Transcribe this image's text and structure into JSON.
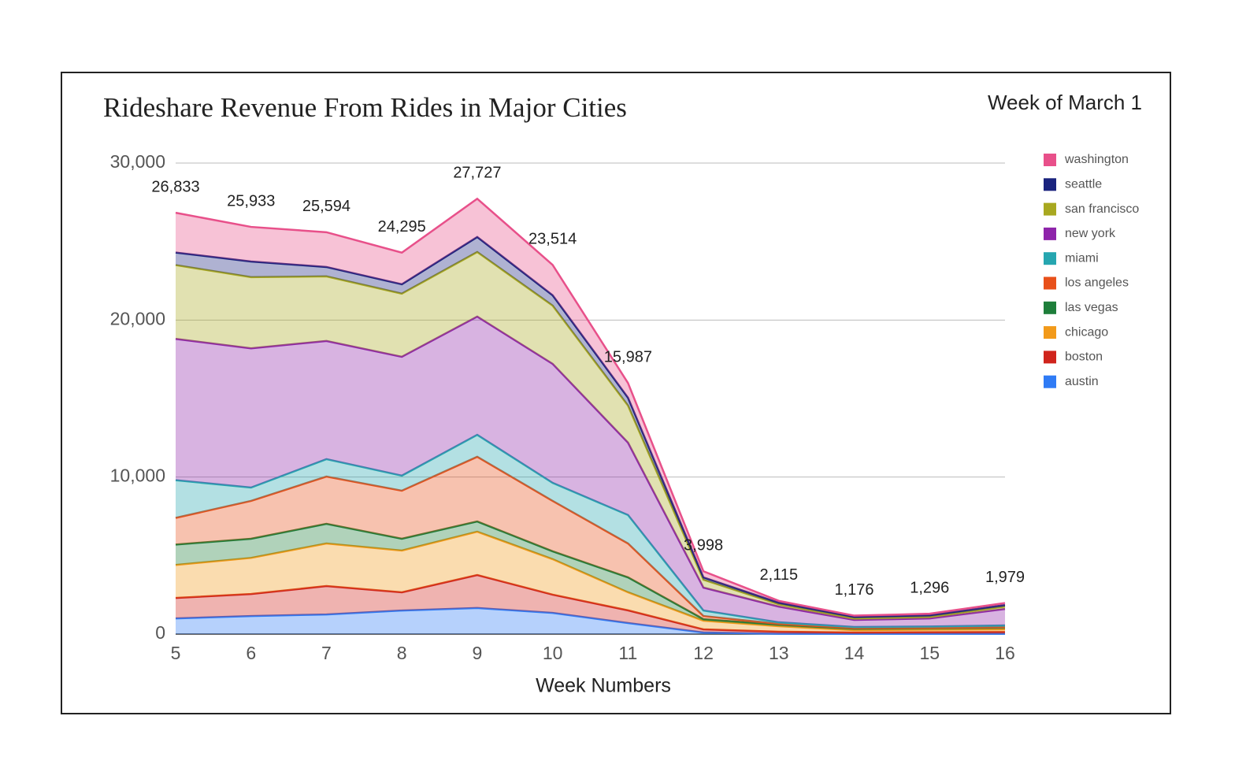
{
  "chart_data": {
    "type": "stacked-area",
    "title": "Rideshare Revenue From Rides in Major Cities",
    "subtitle": "Week of March 1",
    "x_label": "Week Numbers",
    "x": [
      5,
      6,
      7,
      8,
      9,
      10,
      11,
      12,
      13,
      14,
      15,
      16
    ],
    "xlim": [
      5,
      16
    ],
    "xticks": [
      5,
      6,
      7,
      8,
      9,
      10,
      11,
      12,
      13,
      14,
      15,
      16
    ],
    "ylim": [
      0,
      30000
    ],
    "yticks": [
      0,
      {
        "value": 10000,
        "label": "10,000"
      },
      {
        "value": 20000,
        "label": "20,000"
      },
      {
        "value": 30000,
        "label": "30,000"
      }
    ],
    "grid": true,
    "legend": "right",
    "series": [
      {
        "name": "austin",
        "color": "#2f7bf5",
        "values": [
          1000,
          1150,
          1250,
          1500,
          1660,
          1350,
          700,
          100,
          20,
          20,
          20,
          20
        ]
      },
      {
        "name": "boston",
        "color": "#d0241c",
        "values": [
          1300,
          1400,
          1810,
          1160,
          2100,
          1160,
          810,
          200,
          130,
          80,
          100,
          110
        ]
      },
      {
        "name": "chicago",
        "color": "#f29a1a",
        "values": [
          2100,
          2300,
          2710,
          2660,
          2760,
          2260,
          1150,
          550,
          350,
          150,
          160,
          170
        ]
      },
      {
        "name": "las vegas",
        "color": "#1e7e3a",
        "values": [
          1300,
          1220,
          1250,
          750,
          650,
          500,
          950,
          100,
          100,
          100,
          100,
          120
        ]
      },
      {
        "name": "los angeles",
        "color": "#e8501a",
        "values": [
          1700,
          2410,
          3010,
          3060,
          4120,
          3210,
          2160,
          200,
          50,
          30,
          20,
          20
        ]
      },
      {
        "name": "miami",
        "color": "#26a6b0",
        "values": [
          2400,
          850,
          1110,
          960,
          1400,
          1150,
          1810,
          350,
          100,
          70,
          80,
          110
        ]
      },
      {
        "name": "new york",
        "color": "#8e24aa",
        "values": [
          9000,
          8870,
          7530,
          7570,
          7530,
          7580,
          4610,
          1460,
          1000,
          450,
          520,
          1050
        ]
      },
      {
        "name": "san francisco",
        "color": "#a8a820",
        "values": [
          4700,
          4530,
          4110,
          4020,
          4110,
          3710,
          2360,
          500,
          150,
          100,
          100,
          150
        ]
      },
      {
        "name": "seattle",
        "color": "#1a237e",
        "values": [
          800,
          1000,
          600,
          600,
          960,
          660,
          500,
          150,
          100,
          100,
          100,
          100
        ]
      },
      {
        "name": "washington",
        "color": "#e8508a",
        "values": [
          2533,
          2203,
          2214,
          2015,
          2437,
          1934,
          937,
          388,
          115,
          76,
          96,
          129
        ]
      }
    ],
    "totals": [
      26833,
      25933,
      25594,
      24295,
      27727,
      23514,
      15987,
      3998,
      2115,
      1176,
      1296,
      1979
    ],
    "total_labels": [
      "26,833",
      "25,933",
      "25,594",
      "24,295",
      "27,727",
      "23,514",
      "15,987",
      "3,998",
      "2,115",
      "1,176",
      "1,296",
      "1,979"
    ]
  }
}
